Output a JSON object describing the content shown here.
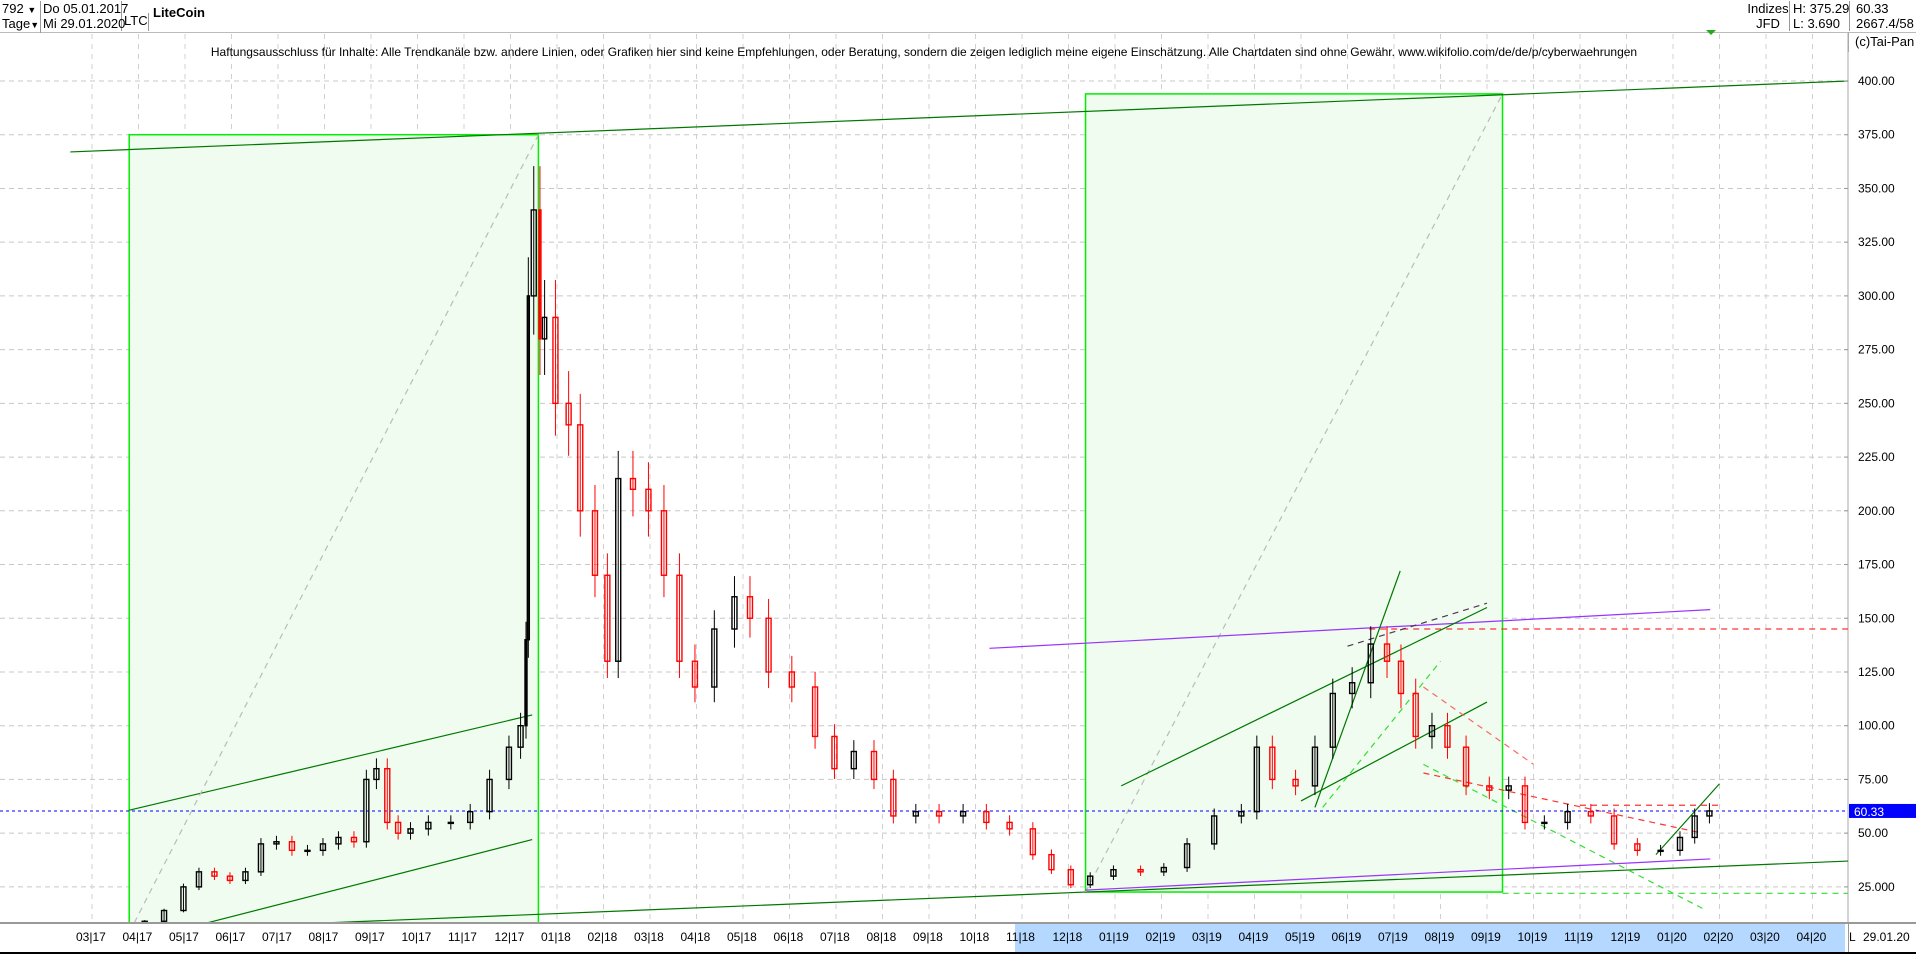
{
  "header": {
    "bar_count": "792",
    "period": "Tage",
    "start_date": "Do 05.01.2017",
    "end_date": "Mi 29.01.2020",
    "symbol": "LTC",
    "title": "LiteCoin",
    "exchange_type": "Indizes",
    "exchange": "JFD",
    "high": "H: 375.29",
    "low": "L: 3.690",
    "last": "60.33",
    "extra": "2667.4/58",
    "copyright": "(c)Tai-Pan"
  },
  "disclaimer": "Haftungsausschluss für Inhalte: Alle Trendkanäle bzw. andere Linien, oder Grafiken hier sind keine Empfehlungen, oder Beratung, sondern die zeigen lediglich meine eigene Einschätzung. Alle Chartdaten sind ohne Gewähr.  www.wikifolio.com/de/de/p/cyberwaehrungen",
  "footer": {
    "mode": "L",
    "date": "29.01.20"
  },
  "chart_data": {
    "type": "candlestick",
    "title": "LiteCoin",
    "ylim": [
      0,
      410
    ],
    "y_ticks": [
      "25.000",
      "50.00",
      "75.00",
      "100.00",
      "125.00",
      "150.00",
      "175.00",
      "200.00",
      "225.00",
      "250.00",
      "275.00",
      "300.00",
      "325.00",
      "350.00",
      "375.00",
      "400.00"
    ],
    "x_ticks": [
      "03|17",
      "04|17",
      "05|17",
      "06|17",
      "07|17",
      "08|17",
      "09|17",
      "10|17",
      "11|17",
      "12|17",
      "01|18",
      "02|18",
      "03|18",
      "04|18",
      "05|18",
      "06|18",
      "07|18",
      "08|18",
      "09|18",
      "10|18",
      "11|18",
      "12|18",
      "01|19",
      "02|19",
      "03|19",
      "04|19",
      "05|19",
      "06|19",
      "07|19",
      "08|19",
      "09|19",
      "10|19",
      "11|19",
      "12|19",
      "01|20",
      "02|20",
      "03|20",
      "04|20"
    ],
    "grid": true,
    "colors": {
      "up": "#000000",
      "down": "#ff0000",
      "box": "#00ee00",
      "box_fill": "#effcef",
      "trend": "#007700",
      "purple": "#9933ff",
      "last_line": "#0000ff"
    },
    "last_price": 60.33,
    "last_price_label": "60.33",
    "series": [
      [
        "2017-01-05",
        4.3
      ],
      [
        "2017-02-01",
        4.0
      ],
      [
        "2017-03-01",
        3.8
      ],
      [
        "2017-03-20",
        4.0
      ],
      [
        "2017-03-30",
        6.5
      ],
      [
        "2017-04-10",
        9
      ],
      [
        "2017-04-25",
        14
      ],
      [
        "2017-05-05",
        25
      ],
      [
        "2017-05-15",
        32
      ],
      [
        "2017-05-25",
        30
      ],
      [
        "2017-06-05",
        28
      ],
      [
        "2017-06-15",
        32
      ],
      [
        "2017-06-25",
        45
      ],
      [
        "2017-07-05",
        46
      ],
      [
        "2017-07-15",
        42
      ],
      [
        "2017-07-25",
        42
      ],
      [
        "2017-08-05",
        45
      ],
      [
        "2017-08-15",
        48
      ],
      [
        "2017-08-25",
        46
      ],
      [
        "2017-09-01",
        75
      ],
      [
        "2017-09-08",
        80
      ],
      [
        "2017-09-15",
        55
      ],
      [
        "2017-09-22",
        50
      ],
      [
        "2017-10-01",
        52
      ],
      [
        "2017-10-15",
        55
      ],
      [
        "2017-10-30",
        55
      ],
      [
        "2017-11-10",
        60
      ],
      [
        "2017-11-25",
        75
      ],
      [
        "2017-12-05",
        90
      ],
      [
        "2017-12-10",
        100
      ],
      [
        "2017-12-12",
        140
      ],
      [
        "2017-12-13",
        300
      ],
      [
        "2017-12-19",
        340
      ],
      [
        "2017-12-21",
        280
      ],
      [
        "2017-12-25",
        290
      ],
      [
        "2018-01-05",
        250
      ],
      [
        "2018-01-12",
        240
      ],
      [
        "2018-01-20",
        200
      ],
      [
        "2018-02-01",
        170
      ],
      [
        "2018-02-06",
        130
      ],
      [
        "2018-02-15",
        215
      ],
      [
        "2018-02-25",
        210
      ],
      [
        "2018-03-05",
        200
      ],
      [
        "2018-03-15",
        170
      ],
      [
        "2018-03-25",
        130
      ],
      [
        "2018-04-05",
        118
      ],
      [
        "2018-04-20",
        145
      ],
      [
        "2018-05-01",
        160
      ],
      [
        "2018-05-10",
        150
      ],
      [
        "2018-05-25",
        125
      ],
      [
        "2018-06-10",
        118
      ],
      [
        "2018-06-25",
        95
      ],
      [
        "2018-07-05",
        80
      ],
      [
        "2018-07-20",
        88
      ],
      [
        "2018-08-01",
        75
      ],
      [
        "2018-08-15",
        58
      ],
      [
        "2018-08-30",
        60
      ],
      [
        "2018-09-15",
        58
      ],
      [
        "2018-10-01",
        60
      ],
      [
        "2018-10-15",
        55
      ],
      [
        "2018-11-01",
        52
      ],
      [
        "2018-11-15",
        40
      ],
      [
        "2018-11-25",
        33
      ],
      [
        "2018-12-10",
        26
      ],
      [
        "2018-12-20",
        30
      ],
      [
        "2019-01-10",
        33
      ],
      [
        "2019-01-25",
        32
      ],
      [
        "2019-02-10",
        34
      ],
      [
        "2019-02-25",
        45
      ],
      [
        "2019-03-15",
        58
      ],
      [
        "2019-03-30",
        60
      ],
      [
        "2019-04-05",
        90
      ],
      [
        "2019-04-20",
        75
      ],
      [
        "2019-05-05",
        72
      ],
      [
        "2019-05-15",
        90
      ],
      [
        "2019-05-28",
        115
      ],
      [
        "2019-06-10",
        120
      ],
      [
        "2019-06-22",
        138
      ],
      [
        "2019-07-01",
        130
      ],
      [
        "2019-07-10",
        115
      ],
      [
        "2019-07-20",
        95
      ],
      [
        "2019-08-01",
        100
      ],
      [
        "2019-08-10",
        90
      ],
      [
        "2019-08-25",
        72
      ],
      [
        "2019-09-10",
        70
      ],
      [
        "2019-09-20",
        72
      ],
      [
        "2019-10-01",
        55
      ],
      [
        "2019-10-15",
        55
      ],
      [
        "2019-11-01",
        60
      ],
      [
        "2019-11-15",
        58
      ],
      [
        "2019-12-01",
        45
      ],
      [
        "2019-12-15",
        42
      ],
      [
        "2020-01-01",
        42
      ],
      [
        "2020-01-10",
        48
      ],
      [
        "2020-01-20",
        58
      ],
      [
        "2020-01-29",
        60.33
      ]
    ],
    "boxes": [
      {
        "from": [
          "2017-03-25",
          3.7
        ],
        "to": [
          "2017-12-19",
          375
        ]
      },
      {
        "from": [
          "2018-12-12",
          22.6
        ],
        "to": [
          "2019-09-11",
          394
        ]
      }
    ],
    "lines": [
      {
        "from": [
          "2017-02-17",
          367
        ],
        "to": [
          "2020-04-24",
          400
        ],
        "color": "#007700",
        "dash": false
      },
      {
        "from": [
          "2017-03-25",
          4.5
        ],
        "to": [
          "2020-04-24",
          37
        ],
        "color": "#007700",
        "dash": false
      },
      {
        "from": [
          "2017-03-25",
          60.7
        ],
        "to": [
          "2017-12-15",
          105
        ],
        "color": "#007700",
        "dash": false
      },
      {
        "from": [
          "2017-04-25",
          4.5
        ],
        "to": [
          "2017-12-15",
          47
        ],
        "color": "#007700",
        "dash": false
      },
      {
        "from": [
          "2017-03-25",
          3.7
        ],
        "to": [
          "2017-12-19",
          375
        ],
        "color": "#bbbbbb",
        "dash": true
      },
      {
        "from": [
          "2018-12-12",
          22.6
        ],
        "to": [
          "2019-09-11",
          394
        ],
        "color": "#bbbbbb",
        "dash": true
      },
      {
        "from": [
          "2018-10-10",
          136
        ],
        "to": [
          "2020-01-25",
          154
        ],
        "color": "#9933ff",
        "dash": false
      },
      {
        "from": [
          "2018-12-12",
          23.5
        ],
        "to": [
          "2020-01-25",
          38
        ],
        "color": "#9933ff",
        "dash": false
      },
      {
        "from": [
          "2019-06-15",
          145
        ],
        "to": [
          "2020-04-24",
          145
        ],
        "color": "#ff3333",
        "dash": true
      },
      {
        "from": [
          "2019-09-11",
          22
        ],
        "to": [
          "2020-04-24",
          22
        ],
        "color": "#33dd33",
        "dash": true
      },
      {
        "from": [
          "2019-01-05",
          72
        ],
        "to": [
          "2019-09-01",
          155
        ],
        "color": "#007700",
        "dash": false
      },
      {
        "from": [
          "2019-05-01",
          65
        ],
        "to": [
          "2019-09-01",
          111
        ],
        "color": "#007700",
        "dash": false
      },
      {
        "from": [
          "2019-05-10",
          62
        ],
        "to": [
          "2019-07-05",
          172
        ],
        "color": "#007700",
        "dash": false
      },
      {
        "from": [
          "2019-06-01",
          137
        ],
        "to": [
          "2019-09-01",
          157
        ],
        "color": "#553355",
        "dash": true
      },
      {
        "from": [
          "2019-05-15",
          62
        ],
        "to": [
          "2019-08-01",
          130
        ],
        "color": "#33dd33",
        "dash": true
      },
      {
        "from": [
          "2019-07-20",
          118
        ],
        "to": [
          "2019-10-01",
          82
        ],
        "color": "#ff6666",
        "dash": true
      },
      {
        "from": [
          "2019-07-20",
          78
        ],
        "to": [
          "2020-01-20",
          50
        ],
        "color": "#ff3333",
        "dash": true
      },
      {
        "from": [
          "2019-07-20",
          82
        ],
        "to": [
          "2020-01-20",
          15
        ],
        "color": "#33dd33",
        "dash": true
      },
      {
        "from": [
          "2019-12-20",
          40
        ],
        "to": [
          "2020-02-01",
          73
        ],
        "color": "#007700",
        "dash": false
      },
      {
        "from": [
          "2019-11-01",
          63
        ],
        "to": [
          "2020-02-01",
          63
        ],
        "color": "#ff3333",
        "dash": true
      }
    ]
  }
}
